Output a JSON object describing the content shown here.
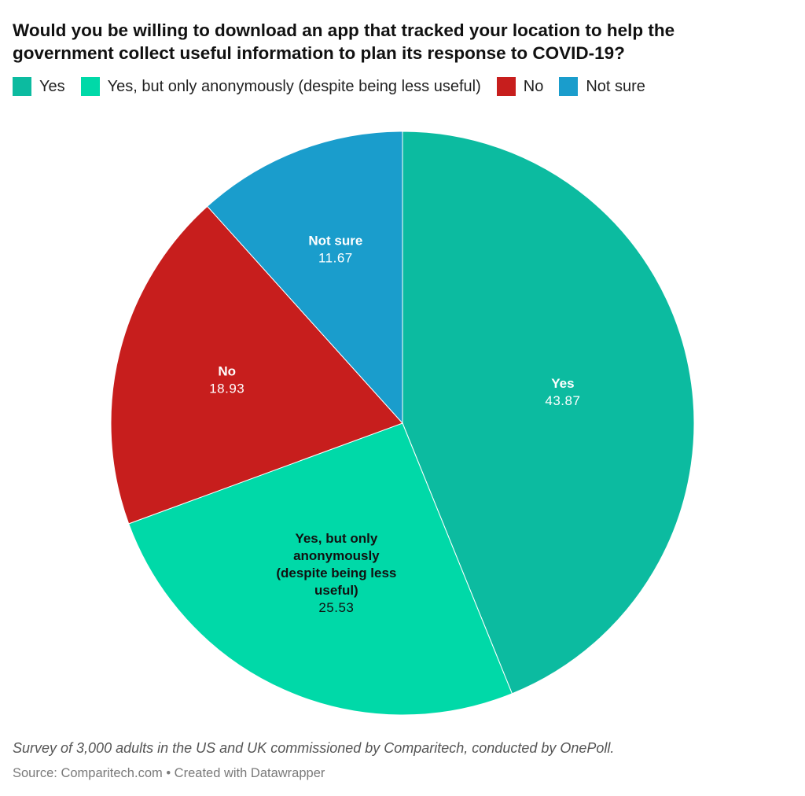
{
  "title_lines": [
    "Would you be willing to download an app that tracked your location to help the",
    "government collect useful information to plan its response to COVID-19?"
  ],
  "legend": [
    {
      "label": "Yes",
      "color": "#0cbba0"
    },
    {
      "label": "Yes, but only anonymously (despite being less useful)",
      "color": "#00d9a8"
    },
    {
      "label": "No",
      "color": "#c71e1d"
    },
    {
      "label": "Not sure",
      "color": "#1a9dcc"
    }
  ],
  "chart_data": {
    "type": "pie",
    "title": "Would you be willing to download an app that tracked your location to help the government collect useful information to plan its response to COVID-19?",
    "start": "12 o'clock, clockwise",
    "slices": [
      {
        "name": "Yes",
        "label_lines": [
          "Yes"
        ],
        "value": 43.87,
        "value_text": "43.87",
        "color": "#0cbba0",
        "text_color": "#ffffff"
      },
      {
        "name": "Yes, but only anonymously (despite being less useful)",
        "label_lines": [
          "Yes, but only",
          "anonymously",
          "(despite being less",
          "useful)"
        ],
        "value": 25.53,
        "value_text": "25.53",
        "color": "#00d9a8",
        "text_color": "#111111"
      },
      {
        "name": "No",
        "label_lines": [
          "No"
        ],
        "value": 18.93,
        "value_text": "18.93",
        "color": "#c71e1d",
        "text_color": "#ffffff"
      },
      {
        "name": "Not sure",
        "label_lines": [
          "Not sure"
        ],
        "value": 11.67,
        "value_text": "11.67",
        "color": "#1a9dcc",
        "text_color": "#ffffff"
      }
    ]
  },
  "footnote": "Survey of 3,000 adults in the US and UK commissioned by Comparitech, conducted by OnePoll.",
  "source": "Source: Comparitech.com • Created with Datawrapper"
}
